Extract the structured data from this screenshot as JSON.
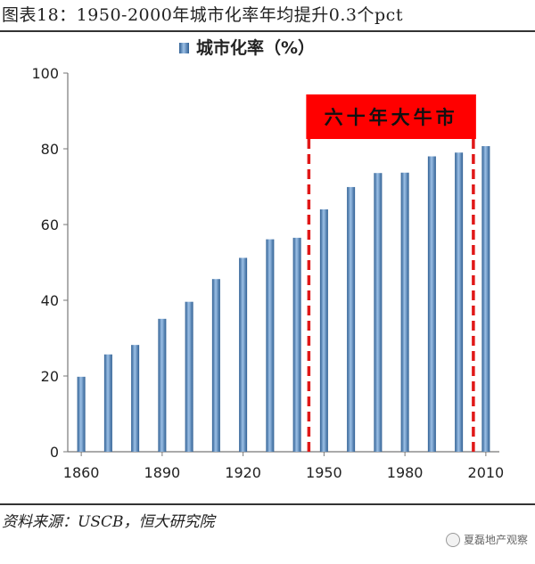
{
  "figure": {
    "title": "图表18：1950-2000年城市化率年均提升0.3个pct",
    "source": "资料来源：USCB，恒大研究院",
    "watermark": "夏磊地产观察"
  },
  "chart_data": {
    "type": "bar",
    "title": "",
    "xlabel": "",
    "ylabel": "",
    "ylim": [
      0,
      100
    ],
    "yticks": [
      0,
      20,
      40,
      60,
      80,
      100
    ],
    "x_tick_labels": [
      "1860",
      "1890",
      "1920",
      "1950",
      "1980",
      "2010"
    ],
    "grid": false,
    "legend": {
      "position": "top-center"
    },
    "series": [
      {
        "name": "城市化率（%）",
        "color": "#4a7fb5",
        "x": [
          1860,
          1870,
          1880,
          1890,
          1900,
          1910,
          1920,
          1930,
          1940,
          1950,
          1960,
          1970,
          1980,
          1990,
          2000,
          2010
        ],
        "values": [
          19.8,
          25.7,
          28.2,
          35.1,
          39.6,
          45.6,
          51.2,
          56.1,
          56.5,
          64.0,
          69.9,
          73.6,
          73.7,
          78.0,
          79.0,
          80.7
        ]
      }
    ],
    "annotation": {
      "label": "六十年大牛市",
      "x_start": 1950,
      "x_end": 2010,
      "color": "#ff0000"
    }
  }
}
